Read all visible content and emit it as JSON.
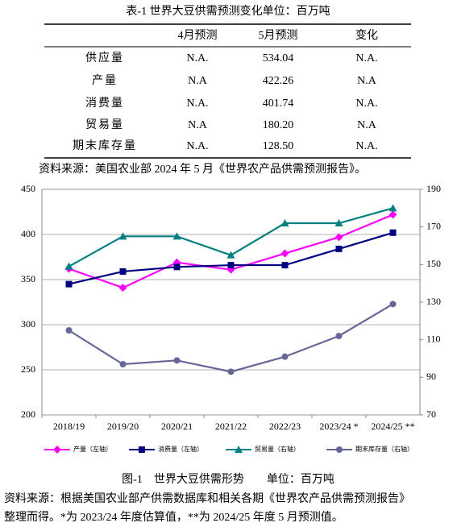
{
  "table": {
    "title": "表-1 世界大豆供需预测变化单位：百万吨",
    "header": [
      "4月预测",
      "5月预测",
      "变化"
    ],
    "rows": [
      [
        "供应量",
        "N.A.",
        "534.04",
        "N.A."
      ],
      [
        "产量",
        "N.A",
        "422.26",
        "N.A"
      ],
      [
        "消费量",
        "N.A.",
        "401.74",
        "N.A."
      ],
      [
        "贸易量",
        "N.A",
        "180.20",
        "N.A"
      ],
      [
        "期末库存量",
        "N.A.",
        "128.50",
        "N.A."
      ]
    ],
    "source": "资料来源：美国农业部 2024 年 5 月《世界农产品供需预测报告》。"
  },
  "chart_data": {
    "type": "line",
    "categories": [
      "2018/19",
      "2019/20",
      "2020/21",
      "2021/22",
      "2022/23",
      "2023/24 *",
      "2024/25 **"
    ],
    "series": [
      {
        "name": "产量（左轴）",
        "color": "#ff00ff",
        "marker": "diamond",
        "values": [
          362,
          341,
          369,
          361,
          379,
          397,
          422
        ]
      },
      {
        "name": "消费量（左轴）",
        "color": "#000080",
        "marker": "square",
        "values": [
          345,
          359,
          364,
          366,
          366,
          384,
          402
        ]
      },
      {
        "name": "贸易量（右轴）",
        "color": "#008080",
        "marker": "triangle",
        "axis": "y2",
        "values": [
          149,
          165,
          165,
          155,
          172,
          172,
          180
        ]
      },
      {
        "name": "期末库存量（右轴）",
        "color": "#666699",
        "marker": "circle",
        "axis": "y2",
        "values": [
          115,
          97,
          99,
          93,
          101,
          112,
          129
        ]
      }
    ],
    "ylim": [
      200,
      450
    ],
    "yticks": [
      200,
      250,
      300,
      350,
      400,
      450
    ],
    "y2lim": [
      70,
      190
    ],
    "y2ticks": [
      70,
      90,
      110,
      130,
      150,
      170,
      190
    ],
    "grid": true
  },
  "caption": "图-1　世界大豆供需形势　　单位：百万吨",
  "source_lines": [
    "资料来源：根据美国农业部产供需数据库和相关各期《世界农产品供需预测报告》",
    "整理而得。*为 2023/24 年度估算值，**为 2024/25 年度 5 月预测值。"
  ]
}
